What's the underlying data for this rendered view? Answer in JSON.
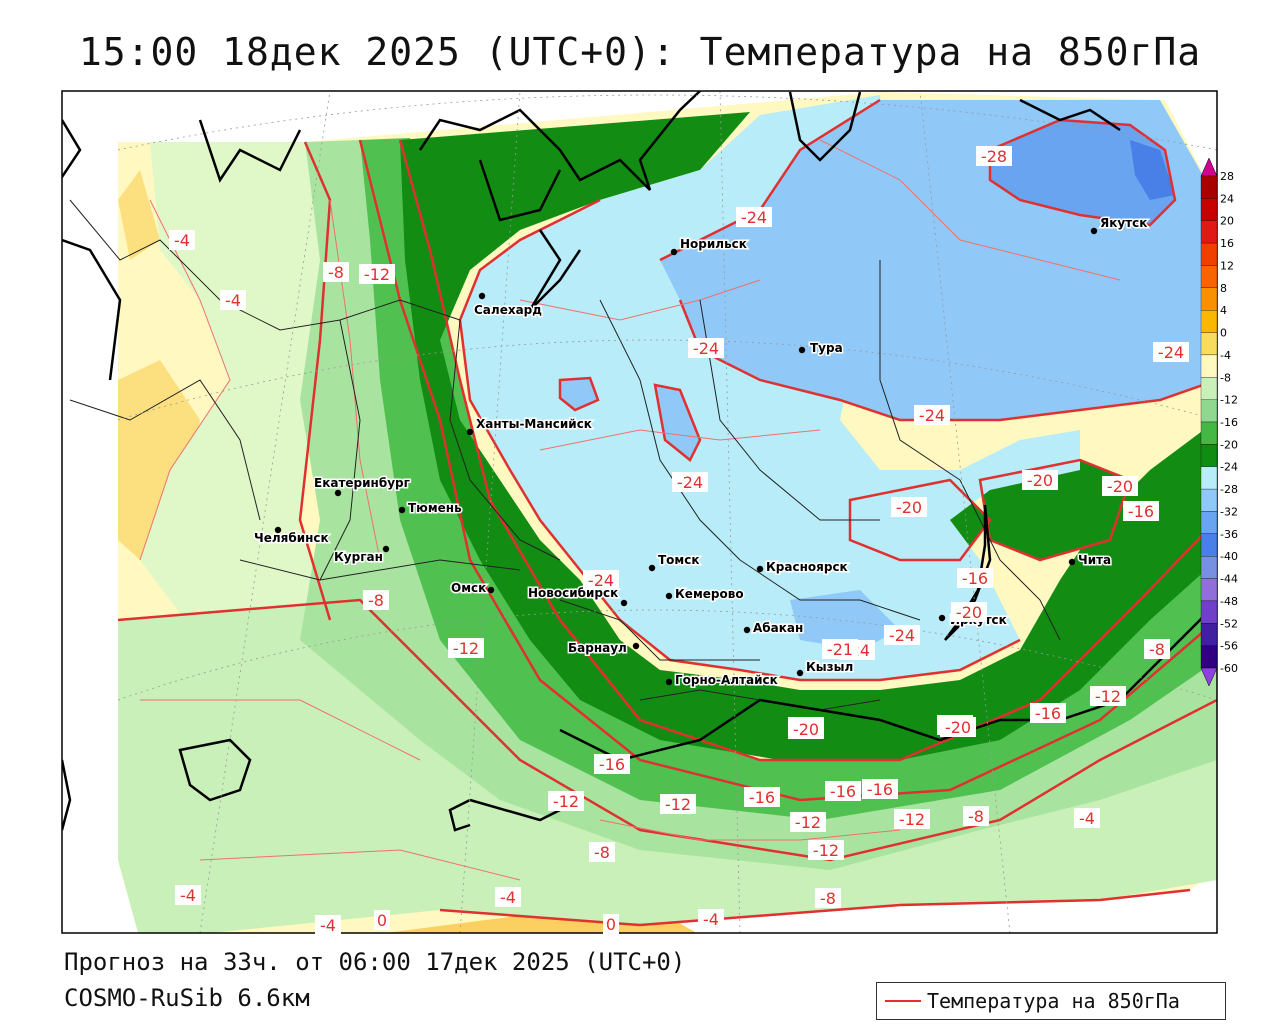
{
  "title": "15:00 18дек 2025 (UTC+0): Температура на 850гПа",
  "footer": {
    "forecast": "Прогноз на 33ч. от 06:00 17дек 2025 (UTC+0)",
    "model": "COSMO-RuSib 6.6км",
    "legend_label": "Температура на 850гПа"
  },
  "colorbar": {
    "ticks": [
      "28",
      "24",
      "20",
      "16",
      "12",
      "8",
      "4",
      "0",
      "-4",
      "-8",
      "-12",
      "-16",
      "-20",
      "-24",
      "-28",
      "-32",
      "-36",
      "-40",
      "-44",
      "-48",
      "-52",
      "-56",
      "-60"
    ],
    "colors": [
      "#a80000",
      "#c80000",
      "#e01818",
      "#f04000",
      "#f86400",
      "#f89000",
      "#f8b800",
      "#f8dc60",
      "#fff8c0",
      "#c8f0b8",
      "#90d890",
      "#44b844",
      "#108c10",
      "#b8ecf8",
      "#90c8f8",
      "#68a4f0",
      "#4880e8",
      "#7890e0",
      "#9070d8",
      "#7040c8",
      "#4020a0",
      "#300080"
    ],
    "arrow_top_color": "#d00090",
    "arrow_bottom_color": "#9040e0",
    "contour_color": "#e03030"
  },
  "cities": [
    {
      "name": "Норильск"
    },
    {
      "name": "Якутск"
    },
    {
      "name": "Салехард"
    },
    {
      "name": "Тура"
    },
    {
      "name": "Ханты-Мансийск"
    },
    {
      "name": "Екатеринбург"
    },
    {
      "name": "Тюмень"
    },
    {
      "name": "Челябинск"
    },
    {
      "name": "Курган"
    },
    {
      "name": "Омск"
    },
    {
      "name": "Томск"
    },
    {
      "name": "Красноярск"
    },
    {
      "name": "Новосибирск"
    },
    {
      "name": "Кемерово"
    },
    {
      "name": "Абакан"
    },
    {
      "name": "Барнаул"
    },
    {
      "name": "Кызыл"
    },
    {
      "name": "Горно-Алтайск"
    },
    {
      "name": "Иркутск"
    },
    {
      "name": "Чита"
    }
  ],
  "contour_labels": [
    "-28",
    "-24",
    "-24",
    "-24",
    "-24",
    "-24",
    "-24",
    "-24",
    "-4",
    "-4",
    "-8",
    "-12",
    "-20",
    "-20",
    "-20",
    "-16",
    "-16",
    "-20",
    "-20",
    "-8",
    "-12",
    "-20",
    "-24",
    "-21",
    "-16",
    "-12",
    "-8",
    "-12",
    "-20",
    "-16",
    "-20",
    "-12",
    "-16",
    "-12",
    "-16",
    "-16",
    "-12",
    "-8",
    "-4",
    "-12",
    "-8",
    "-4",
    "-4",
    "-4",
    "0",
    "0",
    "-4",
    "-8"
  ]
}
